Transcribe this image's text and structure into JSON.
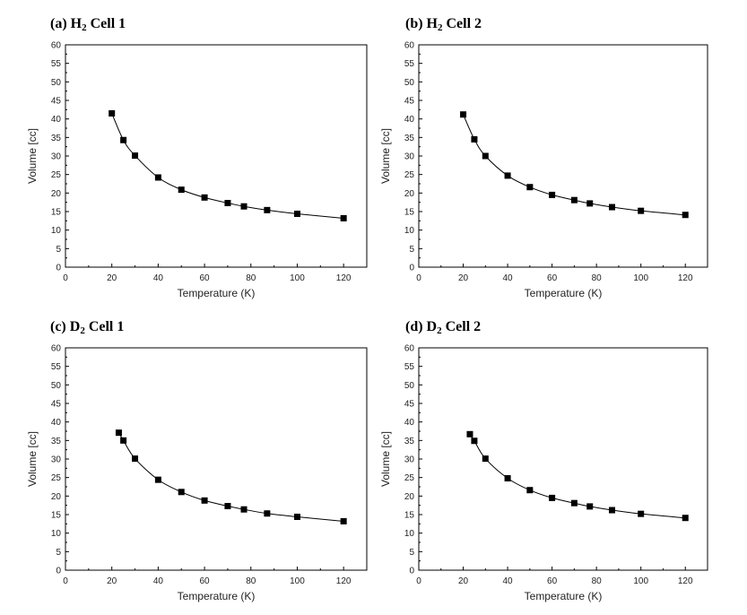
{
  "chart_data": [
    {
      "type": "line",
      "title": {
        "prefix": "(a) H",
        "sub": "2",
        "suffix": " Cell 1"
      },
      "xlabel": "Temperature (K)",
      "ylabel": "Volume [cc]",
      "xlim": [
        0,
        130
      ],
      "ylim": [
        0,
        60
      ],
      "xticks": [
        0,
        20,
        40,
        60,
        80,
        100,
        120
      ],
      "yticks": [
        0,
        5,
        10,
        15,
        20,
        25,
        30,
        35,
        40,
        45,
        50,
        55,
        60
      ],
      "marker": "square",
      "series": [
        {
          "x": [
            20,
            25,
            30,
            40,
            50,
            60,
            70,
            77,
            87,
            100,
            120
          ],
          "y": [
            41.5,
            34.3,
            30.1,
            24.2,
            20.9,
            18.8,
            17.3,
            16.4,
            15.4,
            14.4,
            13.2
          ]
        }
      ]
    },
    {
      "type": "line",
      "title": {
        "prefix": "(b) H",
        "sub": "2",
        "suffix": " Cell 2"
      },
      "xlabel": "Temperature (K)",
      "ylabel": "Volume [cc]",
      "xlim": [
        0,
        130
      ],
      "ylim": [
        0,
        60
      ],
      "xticks": [
        0,
        20,
        40,
        60,
        80,
        100,
        120
      ],
      "yticks": [
        0,
        5,
        10,
        15,
        20,
        25,
        30,
        35,
        40,
        45,
        50,
        55,
        60
      ],
      "marker": "square",
      "series": [
        {
          "x": [
            20,
            25,
            30,
            40,
            50,
            60,
            70,
            77,
            87,
            100,
            120
          ],
          "y": [
            41.2,
            34.5,
            30.0,
            24.7,
            21.6,
            19.5,
            18.1,
            17.2,
            16.2,
            15.2,
            14.1
          ]
        }
      ]
    },
    {
      "type": "line",
      "title": {
        "prefix": "(c) D",
        "sub": "2",
        "suffix": " Cell 1"
      },
      "xlabel": "Temperature (K)",
      "ylabel": "Volume [cc]",
      "xlim": [
        0,
        130
      ],
      "ylim": [
        0,
        60
      ],
      "xticks": [
        0,
        20,
        40,
        60,
        80,
        100,
        120
      ],
      "yticks": [
        0,
        5,
        10,
        15,
        20,
        25,
        30,
        35,
        40,
        45,
        50,
        55,
        60
      ],
      "marker": "square",
      "series": [
        {
          "x": [
            23,
            25,
            30,
            40,
            50,
            60,
            70,
            77,
            87,
            100,
            120
          ],
          "y": [
            37.1,
            35.0,
            30.1,
            24.4,
            21.1,
            18.8,
            17.3,
            16.4,
            15.3,
            14.4,
            13.2
          ]
        }
      ]
    },
    {
      "type": "line",
      "title": {
        "prefix": "(d) D",
        "sub": "2",
        "suffix": " Cell 2"
      },
      "xlabel": "Temperature (K)",
      "ylabel": "Volume [cc]",
      "xlim": [
        0,
        130
      ],
      "ylim": [
        0,
        60
      ],
      "xticks": [
        0,
        20,
        40,
        60,
        80,
        100,
        120
      ],
      "yticks": [
        0,
        5,
        10,
        15,
        20,
        25,
        30,
        35,
        40,
        45,
        50,
        55,
        60
      ],
      "marker": "square",
      "series": [
        {
          "x": [
            23,
            25,
            30,
            40,
            50,
            60,
            70,
            77,
            87,
            100,
            120
          ],
          "y": [
            36.7,
            34.9,
            30.1,
            24.8,
            21.6,
            19.5,
            18.1,
            17.2,
            16.2,
            15.2,
            14.1
          ]
        }
      ]
    }
  ]
}
